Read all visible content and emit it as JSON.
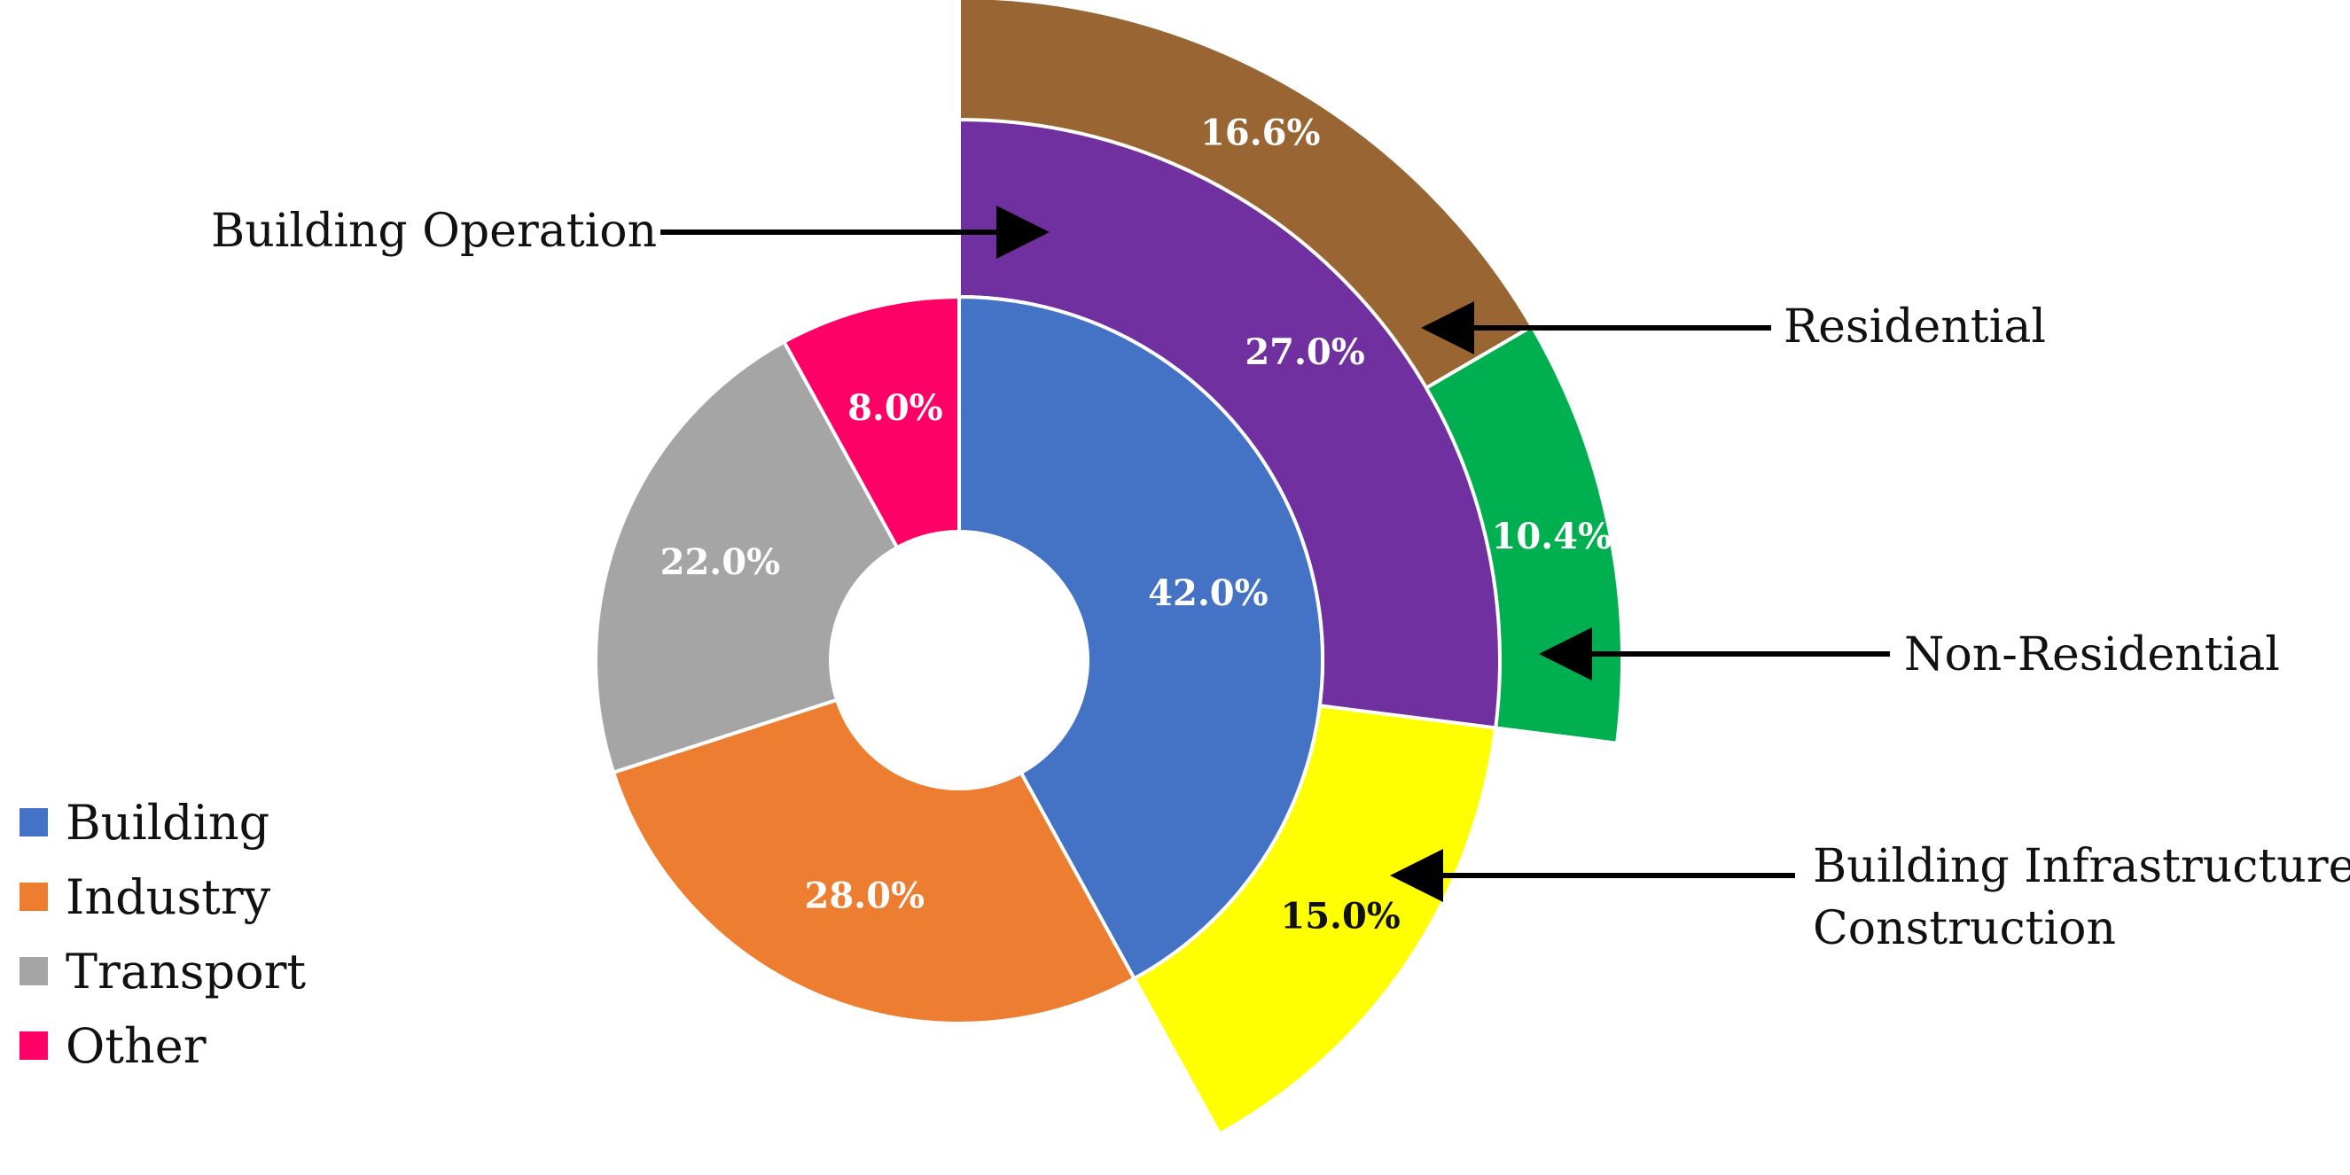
{
  "chart_data": {
    "type": "pie",
    "inner_ring": [
      {
        "name": "Building",
        "value": 42.0,
        "label": "42.0%",
        "color": "#4472C4"
      },
      {
        "name": "Industry",
        "value": 28.0,
        "label": "28.0%",
        "color": "#ED7D31"
      },
      {
        "name": "Transport",
        "value": 22.0,
        "label": "22.0%",
        "color": "#A5A5A5"
      },
      {
        "name": "Other",
        "value": 8.0,
        "label": "8.0%",
        "color": "#FF0066"
      }
    ],
    "building_breakdown": [
      {
        "name": "Building Operation",
        "value": 27.0,
        "label": "27.0%",
        "color": "#7030A0"
      },
      {
        "name": "Building Infrastructure Construction",
        "value": 15.0,
        "label": "15.0%",
        "color": "#FFFF00"
      }
    ],
    "operation_breakdown": [
      {
        "name": "Residential",
        "value": 16.6,
        "label": "16.6%",
        "color": "#996633"
      },
      {
        "name": "Non-Residential",
        "value": 10.4,
        "label": "10.4%",
        "color": "#00B050"
      }
    ],
    "legend": {
      "placement": "bottom-left",
      "items": [
        {
          "label": "Building",
          "color": "#4472C4"
        },
        {
          "label": "Industry",
          "color": "#ED7D31"
        },
        {
          "label": "Transport",
          "color": "#A5A5A5"
        },
        {
          "label": "Other",
          "color": "#FF0066"
        }
      ]
    },
    "callouts": {
      "building_operation": "Building Operation",
      "residential": "Residential",
      "non_residential": "Non-Residential",
      "infrastructure_line1": "Building Infrastructure",
      "infrastructure_line2": "Construction"
    }
  }
}
